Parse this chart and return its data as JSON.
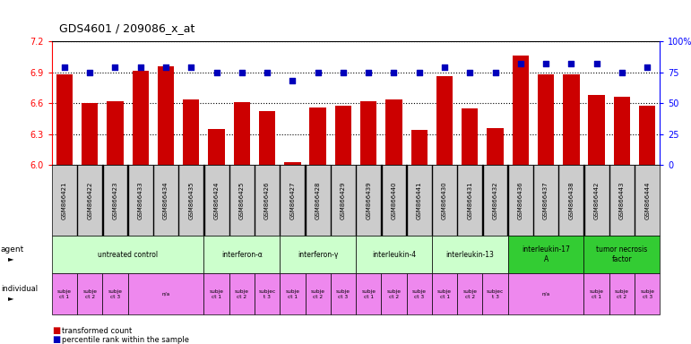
{
  "title": "GDS4601 / 209086_x_at",
  "samples": [
    "GSM866421",
    "GSM866422",
    "GSM866423",
    "GSM866433",
    "GSM866434",
    "GSM866435",
    "GSM866424",
    "GSM866425",
    "GSM866426",
    "GSM866427",
    "GSM866428",
    "GSM866429",
    "GSM866439",
    "GSM866440",
    "GSM866441",
    "GSM866430",
    "GSM866431",
    "GSM866432",
    "GSM866436",
    "GSM866437",
    "GSM866438",
    "GSM866442",
    "GSM866443",
    "GSM866444"
  ],
  "bar_values": [
    6.88,
    6.6,
    6.62,
    6.91,
    6.96,
    6.64,
    6.35,
    6.61,
    6.52,
    6.03,
    6.56,
    6.58,
    6.62,
    6.64,
    6.34,
    6.86,
    6.55,
    6.36,
    7.06,
    6.88,
    6.88,
    6.68,
    6.66,
    6.58
  ],
  "dot_values": [
    79,
    75,
    79,
    79,
    79,
    79,
    75,
    75,
    75,
    68,
    75,
    75,
    75,
    75,
    75,
    79,
    75,
    75,
    82,
    82,
    82,
    82,
    75,
    79
  ],
  "ylim_left": [
    6.0,
    7.2
  ],
  "ylim_right": [
    0,
    100
  ],
  "yticks_left": [
    6.0,
    6.3,
    6.6,
    6.9,
    7.2
  ],
  "yticks_right": [
    0,
    25,
    50,
    75,
    100
  ],
  "bar_color": "#cc0000",
  "dot_color": "#0000bb",
  "agent_groups": [
    {
      "label": "untreated control",
      "start": 0,
      "end": 5,
      "color": "#ccffcc"
    },
    {
      "label": "interferon-α",
      "start": 6,
      "end": 8,
      "color": "#ccffcc"
    },
    {
      "label": "interferon-γ",
      "start": 9,
      "end": 11,
      "color": "#ccffcc"
    },
    {
      "label": "interleukin-4",
      "start": 12,
      "end": 14,
      "color": "#ccffcc"
    },
    {
      "label": "interleukin-13",
      "start": 15,
      "end": 17,
      "color": "#ccffcc"
    },
    {
      "label": "interleukin-17\nA",
      "start": 18,
      "end": 20,
      "color": "#33cc33"
    },
    {
      "label": "tumor necrosis\nfactor",
      "start": 21,
      "end": 23,
      "color": "#33cc33"
    }
  ],
  "individual_groups": [
    {
      "label": "subje\nct 1",
      "start": 0,
      "end": 0,
      "color": "#ee88ee"
    },
    {
      "label": "subje\nct 2",
      "start": 1,
      "end": 1,
      "color": "#ee88ee"
    },
    {
      "label": "subje\nct 3",
      "start": 2,
      "end": 2,
      "color": "#ee88ee"
    },
    {
      "label": "n/a",
      "start": 3,
      "end": 5,
      "color": "#ee88ee"
    },
    {
      "label": "subje\nct 1",
      "start": 6,
      "end": 6,
      "color": "#ee88ee"
    },
    {
      "label": "subje\nct 2",
      "start": 7,
      "end": 7,
      "color": "#ee88ee"
    },
    {
      "label": "subjec\nt 3",
      "start": 8,
      "end": 8,
      "color": "#ee88ee"
    },
    {
      "label": "subje\nct 1",
      "start": 9,
      "end": 9,
      "color": "#ee88ee"
    },
    {
      "label": "subje\nct 2",
      "start": 10,
      "end": 10,
      "color": "#ee88ee"
    },
    {
      "label": "subje\nct 3",
      "start": 11,
      "end": 11,
      "color": "#ee88ee"
    },
    {
      "label": "subje\nct 1",
      "start": 12,
      "end": 12,
      "color": "#ee88ee"
    },
    {
      "label": "subje\nct 2",
      "start": 13,
      "end": 13,
      "color": "#ee88ee"
    },
    {
      "label": "subje\nct 3",
      "start": 14,
      "end": 14,
      "color": "#ee88ee"
    },
    {
      "label": "subje\nct 1",
      "start": 15,
      "end": 15,
      "color": "#ee88ee"
    },
    {
      "label": "subje\nct 2",
      "start": 16,
      "end": 16,
      "color": "#ee88ee"
    },
    {
      "label": "subjec\nt 3",
      "start": 17,
      "end": 17,
      "color": "#ee88ee"
    },
    {
      "label": "n/a",
      "start": 18,
      "end": 20,
      "color": "#ee88ee"
    },
    {
      "label": "subje\nct 1",
      "start": 21,
      "end": 21,
      "color": "#ee88ee"
    },
    {
      "label": "subje\nct 2",
      "start": 22,
      "end": 22,
      "color": "#ee88ee"
    },
    {
      "label": "subje\nct 3",
      "start": 23,
      "end": 23,
      "color": "#ee88ee"
    }
  ]
}
